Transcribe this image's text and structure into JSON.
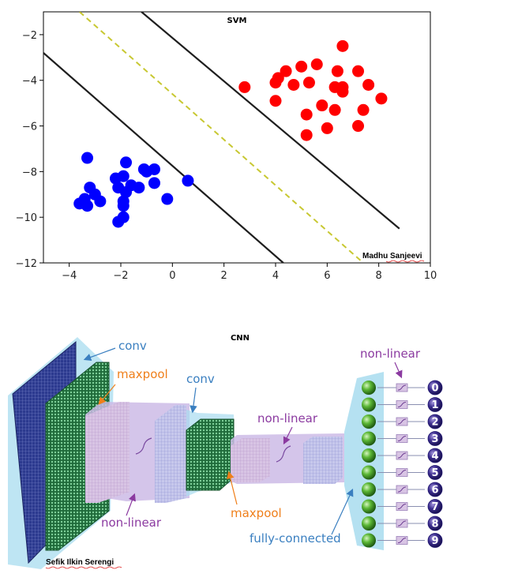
{
  "svm": {
    "title": "SVM",
    "credit": "Madhu Sanjeevi",
    "chart_data": {
      "type": "scatter",
      "xlim": [
        -5,
        10
      ],
      "ylim": [
        -12,
        -1
      ],
      "x_ticks": [
        "−4",
        "−2",
        "0",
        "2",
        "4",
        "6",
        "8",
        "10"
      ],
      "x_tick_values": [
        -4,
        -2,
        0,
        2,
        4,
        6,
        8,
        10
      ],
      "y_ticks": [
        "−2",
        "−4",
        "−6",
        "−8",
        "−10",
        "−12"
      ],
      "y_tick_values": [
        -2,
        -4,
        -6,
        -8,
        -10,
        -12
      ],
      "grid": false,
      "series": [
        {
          "color": "#0000ff",
          "points": [
            [
              -3.3,
              -7.4
            ],
            [
              -1.8,
              -7.6
            ],
            [
              -1.1,
              -7.9
            ],
            [
              -0.7,
              -7.9
            ],
            [
              -1.0,
              -8.0
            ],
            [
              -2.2,
              -8.3
            ],
            [
              -1.9,
              -8.2
            ],
            [
              -1.6,
              -8.6
            ],
            [
              -3.2,
              -8.7
            ],
            [
              -2.1,
              -8.7
            ],
            [
              -1.3,
              -8.7
            ],
            [
              -0.7,
              -8.5
            ],
            [
              0.6,
              -8.4
            ],
            [
              -1.8,
              -8.9
            ],
            [
              -3.4,
              -9.2
            ],
            [
              -3.0,
              -9.0
            ],
            [
              -2.8,
              -9.3
            ],
            [
              -3.6,
              -9.4
            ],
            [
              -3.3,
              -9.5
            ],
            [
              -1.9,
              -9.3
            ],
            [
              -1.9,
              -9.5
            ],
            [
              -0.2,
              -9.2
            ],
            [
              -1.9,
              -10.0
            ],
            [
              -2.1,
              -10.2
            ]
          ]
        },
        {
          "color": "#ff0000",
          "points": [
            [
              6.6,
              -2.5
            ],
            [
              5.6,
              -3.3
            ],
            [
              5.0,
              -3.4
            ],
            [
              4.4,
              -3.6
            ],
            [
              4.0,
              -4.1
            ],
            [
              4.1,
              -3.9
            ],
            [
              4.7,
              -4.2
            ],
            [
              5.3,
              -4.1
            ],
            [
              6.4,
              -3.6
            ],
            [
              7.2,
              -3.6
            ],
            [
              6.3,
              -4.3
            ],
            [
              6.6,
              -4.3
            ],
            [
              6.6,
              -4.5
            ],
            [
              7.6,
              -4.2
            ],
            [
              2.8,
              -4.3
            ],
            [
              8.1,
              -4.8
            ],
            [
              4.0,
              -4.9
            ],
            [
              5.8,
              -5.1
            ],
            [
              6.3,
              -5.3
            ],
            [
              5.2,
              -5.5
            ],
            [
              7.4,
              -5.3
            ],
            [
              6.0,
              -6.1
            ],
            [
              7.2,
              -6.0
            ],
            [
              5.2,
              -6.4
            ]
          ]
        }
      ],
      "lines": [
        {
          "from": [
            -1.2,
            -1.0
          ],
          "to": [
            8.8,
            -10.5
          ],
          "color": "#1e1e1e",
          "dash": false
        },
        {
          "from": [
            -5.1,
            -2.7
          ],
          "to": [
            4.3,
            -12.0
          ],
          "color": "#1e1e1e",
          "dash": false
        },
        {
          "from": [
            -3.6,
            -1.0
          ],
          "to": [
            7.4,
            -12.0
          ],
          "color": "#c8c832",
          "dash": true
        }
      ]
    }
  },
  "cnn": {
    "title": "CNN",
    "credit": "Sefik Ilkin Serengi",
    "labels": {
      "conv1": "conv",
      "maxpool1": "maxpool",
      "conv2": "conv",
      "nonlinear_top": "non-linear",
      "nonlinear_mid": "non-linear",
      "nonlinear_bottom": "non-linear",
      "maxpool2": "maxpool",
      "fully_connected": "fully-connected"
    },
    "outputs": [
      "0",
      "1",
      "2",
      "3",
      "4",
      "5",
      "6",
      "7",
      "8",
      "9"
    ],
    "colors": {
      "conv_label": "#3a7fc0",
      "maxpool_label": "#ef7f1a",
      "nonlinear_label": "#8b3aa0",
      "neuron": "#4fae2e",
      "output_bubble": "#3c2d8f",
      "envelope": "#a8dcef",
      "input_layer": "#2c3a8f",
      "maxpool_block": "#2e8a4e"
    }
  }
}
